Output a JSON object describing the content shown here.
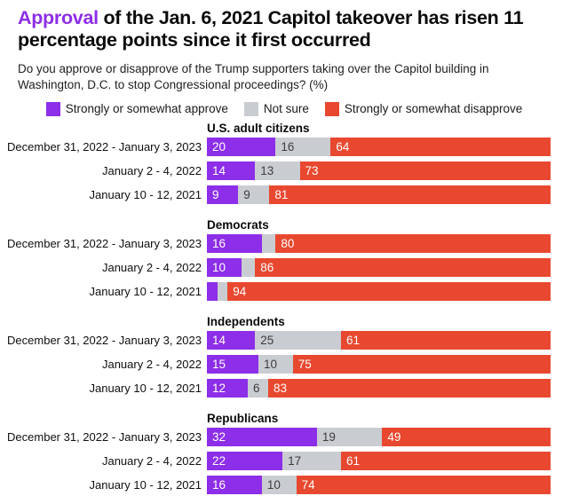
{
  "colors": {
    "accent_purple": "#8D2EE8",
    "approve": "#8D2EE8",
    "not_sure": "#C9CDD2",
    "disapprove": "#E8482F",
    "not_sure_text": "#3C3C3C",
    "segment_text": "#FFFFFF"
  },
  "chart_data": {
    "type": "bar",
    "orientation": "horizontal-stacked",
    "title_accent": "Approval",
    "title_rest": " of the Jan. 6, 2021 Capitol takeover has risen 11 percentage points since it first occurred",
    "subtitle": "Do you approve or disapprove of the Trump supporters taking over the Capitol building in Washington, D.C. to stop Congressional proceedings? (%)",
    "legend_position": "top-center",
    "xlim": [
      0,
      100
    ],
    "grid": false,
    "series": [
      {
        "key": "approve",
        "label": "Strongly or somewhat approve",
        "color": "#8D2EE8",
        "value_text_color": "#FFFFFF"
      },
      {
        "key": "not_sure",
        "label": "Not sure",
        "color": "#C9CDD2",
        "value_text_color": "#3C3C3C"
      },
      {
        "key": "disapprove",
        "label": "Strongly or somewhat disapprove",
        "color": "#E8482F",
        "value_text_color": "#FFFFFF"
      }
    ],
    "groups": [
      {
        "name": "U.S. adult citizens",
        "rows": [
          {
            "period": "December 31, 2022 - January 3, 2023",
            "values": [
              20,
              16,
              64
            ],
            "labels": [
              "20",
              "16",
              "64"
            ]
          },
          {
            "period": "January 2 - 4, 2022",
            "values": [
              14,
              13,
              73
            ],
            "labels": [
              "14",
              "13",
              "73"
            ]
          },
          {
            "period": "January 10 - 12, 2021",
            "values": [
              9,
              9,
              81
            ],
            "labels": [
              "9",
              "9",
              "81"
            ]
          }
        ]
      },
      {
        "name": "Democrats",
        "rows": [
          {
            "period": "December 31, 2022 - January 3, 2023",
            "values": [
              16,
              4,
              80
            ],
            "labels": [
              "16",
              "",
              "80"
            ]
          },
          {
            "period": "January 2 - 4, 2022",
            "values": [
              10,
              4,
              86
            ],
            "labels": [
              "10",
              "",
              "86"
            ]
          },
          {
            "period": "January 10 - 12, 2021",
            "values": [
              3,
              3,
              94
            ],
            "labels": [
              "",
              "",
              "94"
            ]
          }
        ]
      },
      {
        "name": "Independents",
        "rows": [
          {
            "period": "December 31, 2022 - January 3, 2023",
            "values": [
              14,
              25,
              61
            ],
            "labels": [
              "14",
              "25",
              "61"
            ]
          },
          {
            "period": "January 2 - 4, 2022",
            "values": [
              15,
              10,
              75
            ],
            "labels": [
              "15",
              "10",
              "75"
            ]
          },
          {
            "period": "January 10 - 12, 2021",
            "values": [
              12,
              6,
              83
            ],
            "labels": [
              "12",
              "6",
              "83"
            ]
          }
        ]
      },
      {
        "name": "Republicans",
        "rows": [
          {
            "period": "December 31, 2022 - January 3, 2023",
            "values": [
              32,
              19,
              49
            ],
            "labels": [
              "32",
              "19",
              "49"
            ]
          },
          {
            "period": "January 2 - 4, 2022",
            "values": [
              22,
              17,
              61
            ],
            "labels": [
              "22",
              "17",
              "61"
            ]
          },
          {
            "period": "January 10 - 12, 2021",
            "values": [
              16,
              10,
              74
            ],
            "labels": [
              "16",
              "10",
              "74"
            ]
          }
        ]
      }
    ]
  }
}
